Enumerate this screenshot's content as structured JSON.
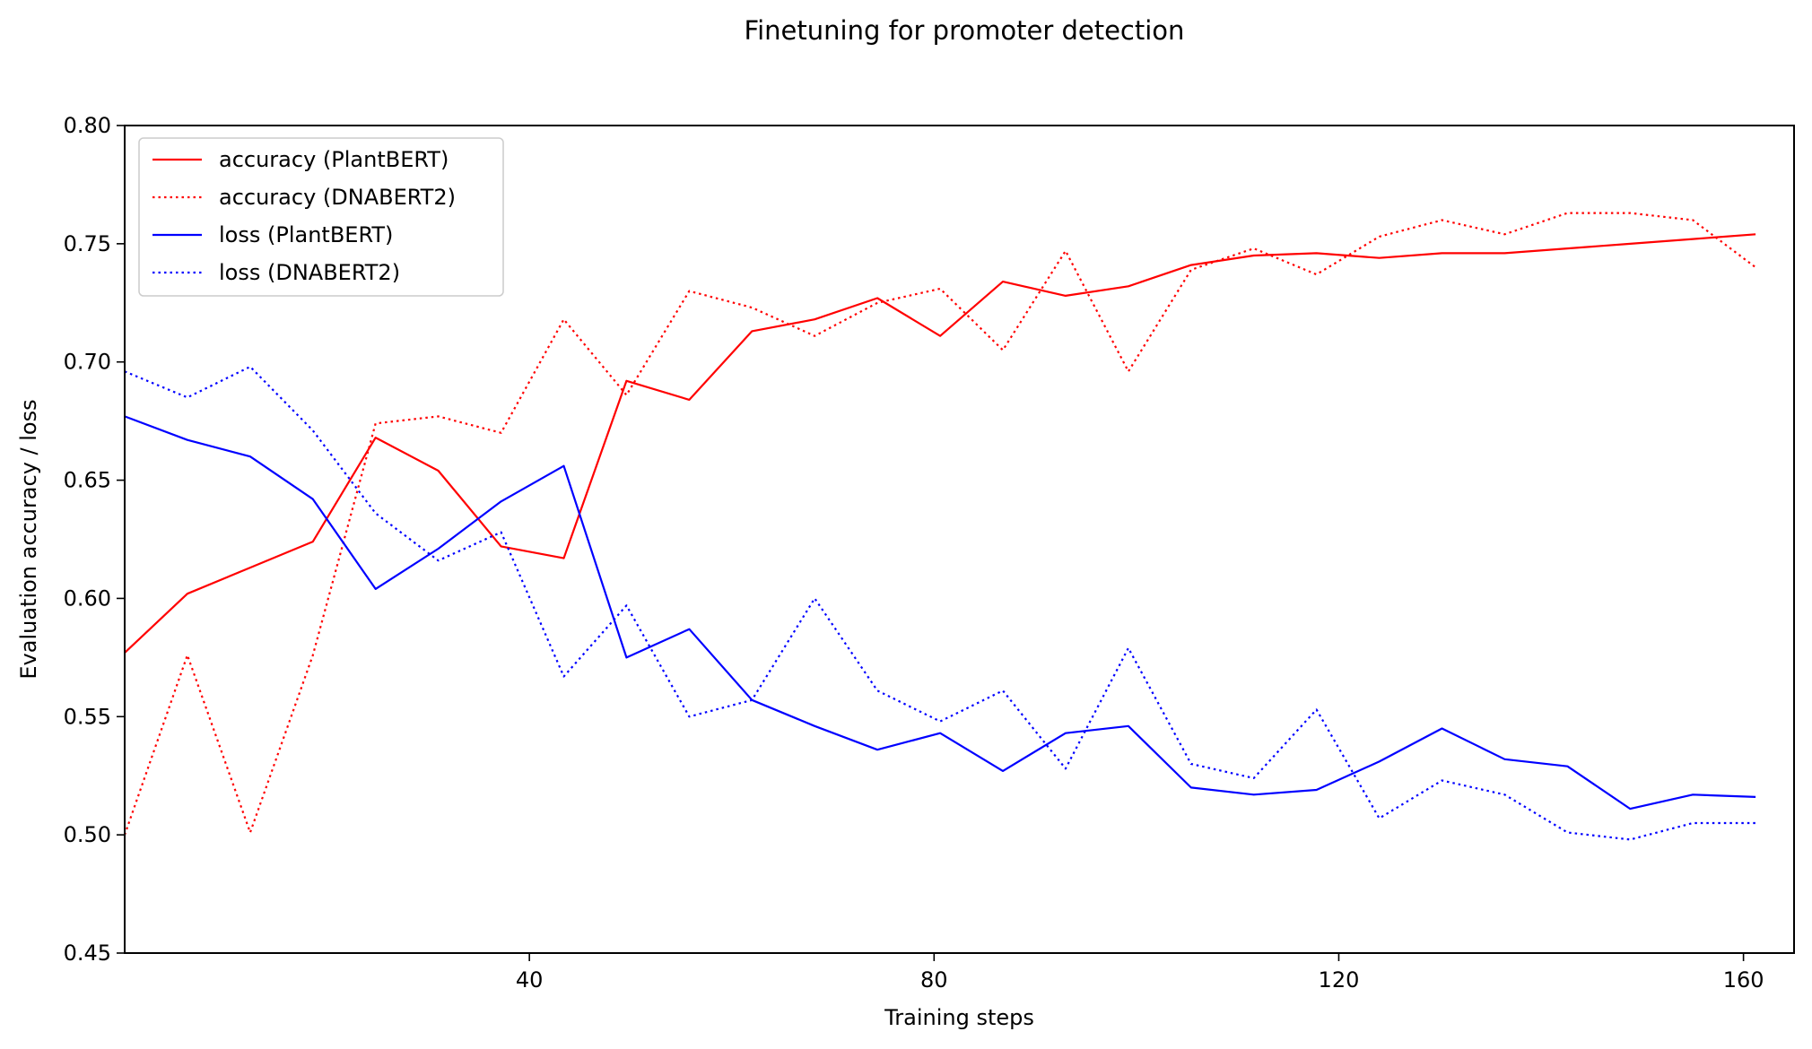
{
  "chart_data": {
    "type": "line",
    "title": "Finetuning for promoter detection",
    "xlabel": "Training steps",
    "ylabel": "Evaluation accuracy / loss",
    "xlim": [
      0,
      165
    ],
    "ylim": [
      0.45,
      0.8
    ],
    "xticks": [
      40,
      80,
      120,
      160
    ],
    "yticks": [
      0.45,
      0.5,
      0.55,
      0.6,
      0.65,
      0.7,
      0.75,
      0.8
    ],
    "grid": false,
    "legend_position": "top-left",
    "x": [
      0,
      6.2,
      12.4,
      18.6,
      24.8,
      31,
      37.2,
      43.4,
      49.6,
      55.8,
      62,
      68.2,
      74.4,
      80.6,
      86.8,
      93,
      99.2,
      105.4,
      111.6,
      117.8,
      124,
      130.2,
      136.4,
      142.6,
      148.8,
      155,
      161.2
    ],
    "series": [
      {
        "name": "accuracy (PlantBERT)",
        "color": "#ff0000",
        "style": "solid",
        "values": [
          0.577,
          0.602,
          0.613,
          0.624,
          0.668,
          0.654,
          0.622,
          0.617,
          0.692,
          0.684,
          0.713,
          0.718,
          0.727,
          0.711,
          0.734,
          0.728,
          0.732,
          0.741,
          0.745,
          0.746,
          0.744,
          0.746,
          0.746,
          0.748,
          0.75,
          0.752,
          0.754
        ]
      },
      {
        "name": "accuracy (DNABERT2)",
        "color": "#ff0000",
        "style": "dotted",
        "values": [
          0.5,
          0.576,
          0.501,
          0.576,
          0.674,
          0.677,
          0.67,
          0.718,
          0.686,
          0.73,
          0.723,
          0.711,
          0.725,
          0.731,
          0.705,
          0.747,
          0.696,
          0.739,
          0.748,
          0.737,
          0.753,
          0.76,
          0.754,
          0.763,
          0.763,
          0.76,
          0.74
        ]
      },
      {
        "name": "loss (PlantBERT)",
        "color": "#0000ff",
        "style": "solid",
        "values": [
          0.677,
          0.667,
          0.66,
          0.642,
          0.604,
          0.621,
          0.641,
          0.656,
          0.575,
          0.587,
          0.557,
          0.546,
          0.536,
          0.543,
          0.527,
          0.543,
          0.546,
          0.52,
          0.517,
          0.519,
          0.531,
          0.545,
          0.532,
          0.529,
          0.511,
          0.517,
          0.516
        ]
      },
      {
        "name": "loss (DNABERT2)",
        "color": "#0000ff",
        "style": "dotted",
        "values": [
          0.696,
          0.685,
          0.698,
          0.671,
          0.636,
          0.616,
          0.628,
          0.567,
          0.597,
          0.55,
          0.557,
          0.6,
          0.561,
          0.548,
          0.561,
          0.528,
          0.579,
          0.53,
          0.524,
          0.553,
          0.507,
          0.523,
          0.517,
          0.501,
          0.498,
          0.505,
          0.505
        ]
      }
    ]
  }
}
